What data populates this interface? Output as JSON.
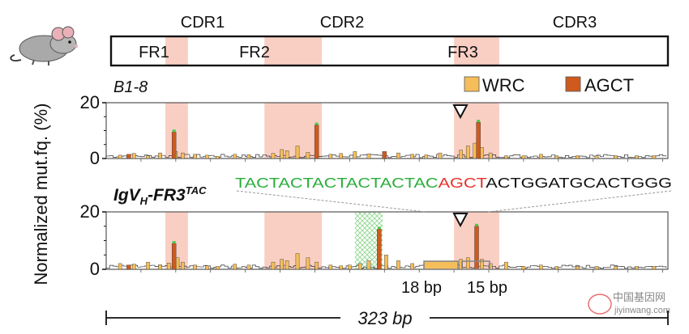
{
  "figure": {
    "regions": {
      "cdr_labels": [
        "CDR1",
        "CDR2",
        "CDR3"
      ],
      "fr_labels": [
        "FR1",
        "FR2",
        "FR3"
      ]
    },
    "mouse_icon": "mouse-icon",
    "ylabel": "Normalized mut.fq. (%)",
    "legend": [
      {
        "name": "WRC",
        "color": "#F5BE5B"
      },
      {
        "name": "AGCT",
        "color": "#CF5A1E"
      }
    ],
    "colors": {
      "cdr_shade": "#F9CFC4",
      "trace_line": "#333333",
      "hotspot_peak": "#4CC94C",
      "insert_hatch": "#8ED68E",
      "seq_green": "#2AAE3C",
      "seq_red": "#E5332A",
      "seq_black": "#111111"
    },
    "panels": [
      {
        "title": "B1-8",
        "title_base": "B1-8",
        "title_sub": "",
        "title_sup": ""
      },
      {
        "title": "IgVH-FR3TAC",
        "title_base": "IgV",
        "title_sub": "H",
        "title_sup": "-FR3",
        "title_sup2": "TAC"
      }
    ],
    "sequence": {
      "green": "TACTACTACTACTACTAC",
      "red": "AGCT",
      "black": "ACTGGATGCACTGGG"
    },
    "annotations": {
      "left_bp": "18 bp",
      "right_bp": "15 bp",
      "length": "323 bp"
    },
    "watermark": {
      "cn": "中国基因网",
      "url": "jiyinwang.com"
    }
  },
  "chart_data": [
    {
      "type": "bar",
      "title": "B1-8",
      "ylabel": "Normalized mut.fq. (%)",
      "xlim": [
        0,
        323
      ],
      "ylim": [
        0,
        20
      ],
      "yticks": [
        0,
        20
      ],
      "cdr_regions": [
        [
          34,
          47
        ],
        [
          91,
          124
        ],
        [
          200,
          226
        ]
      ],
      "series": [
        {
          "name": "WRC",
          "points": [
            [
              8,
              1.2
            ],
            [
              16,
              1.8
            ],
            [
              24,
              1.0
            ],
            [
              31,
              2.0
            ],
            [
              40,
              2.5
            ],
            [
              44,
              2.0
            ],
            [
              51,
              1.5
            ],
            [
              58,
              1.2
            ],
            [
              64,
              0.8
            ],
            [
              74,
              1.5
            ],
            [
              82,
              1.4
            ],
            [
              96,
              1.8
            ],
            [
              101,
              3.2
            ],
            [
              104,
              2.8
            ],
            [
              110,
              4.5
            ],
            [
              116,
              2.2
            ],
            [
              121,
              1.0
            ],
            [
              129,
              1.5
            ],
            [
              135,
              1.8
            ],
            [
              143,
              2.5
            ],
            [
              151,
              1.7
            ],
            [
              160,
              1.2
            ],
            [
              168,
              2.0
            ],
            [
              176,
              1.5
            ],
            [
              184,
              1.3
            ],
            [
              192,
              2.0
            ],
            [
              204,
              3.0
            ],
            [
              208,
              4.5
            ],
            [
              212,
              5.5
            ],
            [
              216,
              4.0
            ],
            [
              221,
              2.0
            ],
            [
              230,
              1.0
            ],
            [
              240,
              1.0
            ],
            [
              250,
              1.5
            ],
            [
              259,
              1.0
            ],
            [
              271,
              1.0
            ],
            [
              282,
              1.0
            ],
            [
              293,
              1.0
            ],
            [
              305,
              1.0
            ],
            [
              315,
              1.0
            ]
          ]
        },
        {
          "name": "AGCT",
          "points": [
            [
              13,
              1.5
            ],
            [
              39,
              9.5
            ],
            [
              121,
              12.0
            ],
            [
              160,
              2.5
            ],
            [
              214,
              13.0
            ]
          ]
        }
      ]
    },
    {
      "type": "bar",
      "title": "IgVH-FR3TAC",
      "ylabel": "Normalized mut.fq. (%)",
      "xlim": [
        0,
        323
      ],
      "ylim": [
        0,
        20
      ],
      "yticks": [
        0,
        20
      ],
      "cdr_regions": [
        [
          34,
          47
        ],
        [
          91,
          124
        ],
        [
          200,
          226
        ]
      ],
      "insert_region": [
        143,
        159
      ],
      "series": [
        {
          "name": "WRC",
          "points": [
            [
              8,
              2.0
            ],
            [
              16,
              1.8
            ],
            [
              24,
              2.5
            ],
            [
              31,
              1.5
            ],
            [
              36,
              2.2
            ],
            [
              41,
              4.0
            ],
            [
              44,
              2.5
            ],
            [
              51,
              1.5
            ],
            [
              58,
              1.2
            ],
            [
              64,
              1.0
            ],
            [
              74,
              1.8
            ],
            [
              82,
              1.5
            ],
            [
              96,
              2.5
            ],
            [
              101,
              3.5
            ],
            [
              104,
              3.0
            ],
            [
              110,
              5.5
            ],
            [
              116,
              4.0
            ],
            [
              121,
              2.5
            ],
            [
              129,
              1.5
            ],
            [
              135,
              1.2
            ],
            [
              140,
              1.5
            ],
            [
              146,
              2.0
            ],
            [
              151,
              3.0
            ],
            [
              161,
              5.0
            ],
            [
              168,
              3.0
            ],
            [
              176,
              2.0
            ],
            [
              184,
              1.5
            ],
            [
              190,
              2.5
            ],
            [
              196,
              2.0
            ],
            [
              204,
              3.5
            ],
            [
              208,
              4.0
            ],
            [
              216,
              3.5
            ],
            [
              221,
              2.0
            ],
            [
              230,
              2.5
            ],
            [
              240,
              1.0
            ],
            [
              250,
              1.5
            ],
            [
              259,
              1.0
            ],
            [
              271,
              1.0
            ],
            [
              282,
              1.0
            ],
            [
              293,
              1.0
            ],
            [
              305,
              1.0
            ],
            [
              315,
              1.0
            ]
          ]
        },
        {
          "name": "AGCT",
          "points": [
            [
              13,
              1.5
            ],
            [
              39,
              9.0
            ],
            [
              157,
              14.0
            ],
            [
              213,
              15.0
            ]
          ]
        }
      ]
    }
  ]
}
